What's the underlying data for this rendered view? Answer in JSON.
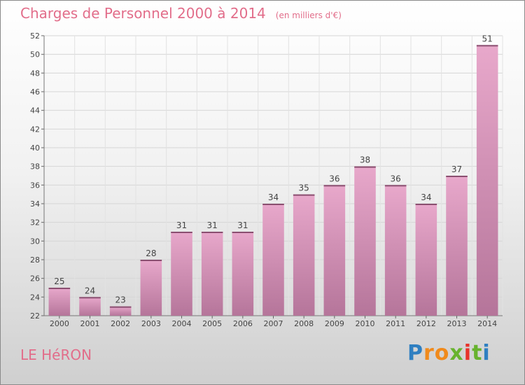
{
  "chart_data": {
    "type": "bar",
    "title": "Charges de Personnel 2000 à 2014",
    "subtitle": "(en milliers d'€)",
    "categories": [
      "2000",
      "2001",
      "2002",
      "2003",
      "2004",
      "2005",
      "2006",
      "2007",
      "2008",
      "2009",
      "2010",
      "2011",
      "2012",
      "2013",
      "2014"
    ],
    "values": [
      25,
      24,
      23,
      28,
      31,
      31,
      31,
      34,
      35,
      36,
      38,
      36,
      34,
      37,
      51
    ],
    "ylim": [
      22,
      52
    ],
    "yticks": [
      22,
      24,
      26,
      28,
      30,
      32,
      34,
      36,
      38,
      40,
      42,
      44,
      46,
      48,
      50,
      52
    ],
    "grid": true,
    "bar_color_top": "#e8a8cb",
    "bar_color_bottom": "#b5759a"
  },
  "commune": "LE HéRON",
  "logo": {
    "letters": [
      "P",
      "r",
      "o",
      "x",
      "i",
      "t",
      "i"
    ],
    "colors": [
      "#2f7fc1",
      "#f08a1c",
      "#f08a1c",
      "#67b32e",
      "#e8332a",
      "#67b32e",
      "#2f7fc1"
    ]
  }
}
